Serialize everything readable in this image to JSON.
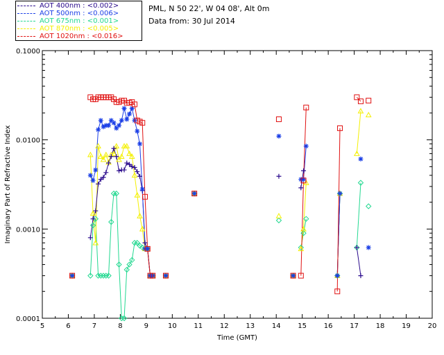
{
  "legend": [
    {
      "label": "AOT  400nm : <0.002>",
      "color": "#2a0a8c"
    },
    {
      "label": "AOT  500nm : <0.006>",
      "color": "#1a3ee6"
    },
    {
      "label": "AOT  675nm : <0.001>",
      "color": "#22d890"
    },
    {
      "label": "AOT  870nm : <0.005>",
      "color": "#f4f000"
    },
    {
      "label": "AOT 1020nm : <0.016>",
      "color": "#e01010"
    }
  ],
  "info": {
    "site": "PML, N 50 22', W 04 08', Alt 0m",
    "date": "Data from: 30 Jul 2014"
  },
  "chart_data": {
    "type": "line",
    "xlabel": "Time (GMT)",
    "ylabel": "Imaginary Part of Refractive Index",
    "xlim": [
      5,
      20
    ],
    "ylim": [
      0.0001,
      0.1
    ],
    "yscale": "log",
    "xticks": [
      "5",
      "6",
      "7",
      "8",
      "9",
      "10",
      "11",
      "12",
      "13",
      "14",
      "15",
      "16",
      "17",
      "18",
      "19",
      "20"
    ],
    "yticks": [
      {
        "label": "0.0001",
        "value": 0.0001
      },
      {
        "label": "0.0010",
        "value": 0.001
      },
      {
        "label": "0.0100",
        "value": 0.01
      },
      {
        "label": "0.1000",
        "value": 0.1
      }
    ],
    "series": [
      {
        "name": "AOT  400nm : <0.002>",
        "color": "#2a0a8c",
        "marker": "plus",
        "segments": [
          [
            [
              6.15,
              0.0003
            ]
          ],
          [
            [
              6.85,
              0.0008
            ],
            [
              6.95,
              0.0013
            ],
            [
              7.05,
              0.0016
            ],
            [
              7.15,
              0.0032
            ],
            [
              7.25,
              0.0036
            ],
            [
              7.35,
              0.0038
            ],
            [
              7.45,
              0.0043
            ],
            [
              7.55,
              0.0055
            ],
            [
              7.65,
              0.0065
            ],
            [
              7.75,
              0.008
            ],
            [
              7.85,
              0.0065
            ],
            [
              7.95,
              0.0045
            ],
            [
              8.05,
              0.0046
            ],
            [
              8.15,
              0.0046
            ],
            [
              8.25,
              0.0055
            ],
            [
              8.35,
              0.0053
            ],
            [
              8.45,
              0.005
            ],
            [
              8.55,
              0.0049
            ],
            [
              8.65,
              0.0044
            ],
            [
              8.75,
              0.0039
            ],
            [
              8.85,
              0.0027
            ],
            [
              8.95,
              0.0007
            ],
            [
              9.05,
              0.0006
            ],
            [
              9.15,
              0.0003
            ],
            [
              9.25,
              0.0003
            ]
          ],
          [
            [
              9.75,
              0.0003
            ]
          ],
          [
            [
              10.85,
              0.0025
            ]
          ],
          [
            [
              14.1,
              0.0039
            ]
          ],
          [
            [
              14.65,
              0.0003
            ]
          ],
          [
            [
              14.95,
              0.0029
            ],
            [
              15.05,
              0.0045
            ]
          ],
          [
            [
              16.35,
              0.0003
            ],
            [
              16.45,
              0.0025
            ]
          ],
          [
            [
              17.1,
              0.00062
            ],
            [
              17.25,
              0.0003
            ]
          ]
        ]
      },
      {
        "name": "AOT  500nm : <0.006>",
        "color": "#1a3ee6",
        "marker": "star",
        "segments": [
          [
            [
              6.15,
              0.0003
            ]
          ],
          [
            [
              6.85,
              0.004
            ],
            [
              6.95,
              0.0035
            ],
            [
              7.05,
              0.0046
            ],
            [
              7.15,
              0.013
            ],
            [
              7.25,
              0.0165
            ],
            [
              7.35,
              0.014
            ],
            [
              7.45,
              0.0145
            ],
            [
              7.55,
              0.0145
            ],
            [
              7.65,
              0.0165
            ],
            [
              7.75,
              0.0155
            ],
            [
              7.85,
              0.0135
            ],
            [
              7.95,
              0.0145
            ],
            [
              8.05,
              0.0165
            ],
            [
              8.15,
              0.0225
            ],
            [
              8.25,
              0.017
            ],
            [
              8.35,
              0.0195
            ],
            [
              8.45,
              0.0225
            ],
            [
              8.55,
              0.0165
            ],
            [
              8.65,
              0.0125
            ],
            [
              8.75,
              0.009
            ],
            [
              8.85,
              0.0028
            ],
            [
              8.95,
              0.0006
            ],
            [
              9.05,
              0.0006
            ],
            [
              9.15,
              0.0003
            ],
            [
              9.25,
              0.0003
            ]
          ],
          [
            [
              9.75,
              0.0003
            ]
          ],
          [
            [
              10.85,
              0.0025
            ]
          ],
          [
            [
              14.1,
              0.011
            ]
          ],
          [
            [
              14.65,
              0.0003
            ]
          ],
          [
            [
              14.95,
              0.0036
            ],
            [
              15.05,
              0.0036
            ],
            [
              15.15,
              0.0085
            ]
          ],
          [
            [
              16.35,
              0.0003
            ],
            [
              16.45,
              0.0025
            ]
          ],
          [
            [
              17.25,
              0.0061
            ]
          ],
          [
            [
              17.55,
              0.00062
            ]
          ]
        ]
      },
      {
        "name": "AOT  675nm : <0.001>",
        "color": "#22d890",
        "marker": "diamond",
        "segments": [
          [
            [
              6.15,
              0.0003
            ]
          ],
          [
            [
              6.85,
              0.0003
            ],
            [
              6.95,
              0.0011
            ],
            [
              7.05,
              0.0013
            ],
            [
              7.15,
              0.0003
            ],
            [
              7.25,
              0.0003
            ],
            [
              7.35,
              0.0003
            ],
            [
              7.45,
              0.0003
            ],
            [
              7.55,
              0.0003
            ],
            [
              7.65,
              0.0012
            ],
            [
              7.75,
              0.0025
            ],
            [
              7.85,
              0.0025
            ],
            [
              7.95,
              0.0004
            ],
            [
              8.05,
              0.0001
            ],
            [
              8.15,
              0.0001
            ],
            [
              8.25,
              0.00035
            ],
            [
              8.35,
              0.0004
            ],
            [
              8.45,
              0.00045
            ],
            [
              8.55,
              0.0007
            ],
            [
              8.65,
              0.0007
            ],
            [
              8.75,
              0.00065
            ],
            [
              8.85,
              0.00062
            ],
            [
              8.95,
              0.0006
            ],
            [
              9.05,
              0.0006
            ],
            [
              9.15,
              0.0003
            ],
            [
              9.25,
              0.0003
            ]
          ],
          [
            [
              9.75,
              0.0003
            ]
          ],
          [
            [
              10.85,
              0.0025
            ]
          ],
          [
            [
              14.1,
              0.00125
            ]
          ],
          [
            [
              14.65,
              0.0003
            ]
          ],
          [
            [
              14.95,
              0.00062
            ],
            [
              15.05,
              0.0009
            ],
            [
              15.15,
              0.0013
            ]
          ],
          [
            [
              16.35,
              0.0003
            ],
            [
              16.45,
              0.0025
            ]
          ],
          [
            [
              17.1,
              0.00062
            ],
            [
              17.25,
              0.0033
            ]
          ],
          [
            [
              17.55,
              0.0018
            ]
          ]
        ]
      },
      {
        "name": "AOT  870nm : <0.005>",
        "color": "#f4f000",
        "marker": "triangle",
        "segments": [
          [
            [
              6.15,
              0.0003
            ]
          ],
          [
            [
              6.85,
              0.0068
            ],
            [
              6.95,
              0.0015
            ],
            [
              7.05,
              0.0007
            ],
            [
              7.15,
              0.0085
            ],
            [
              7.25,
              0.0065
            ],
            [
              7.35,
              0.006
            ],
            [
              7.45,
              0.0068
            ],
            [
              7.55,
              0.0056
            ],
            [
              7.65,
              0.0068
            ],
            [
              7.75,
              0.007
            ],
            [
              7.85,
              0.0085
            ],
            [
              7.95,
              0.006
            ],
            [
              8.05,
              0.0065
            ],
            [
              8.15,
              0.0085
            ],
            [
              8.25,
              0.0085
            ],
            [
              8.35,
              0.007
            ],
            [
              8.45,
              0.0065
            ],
            [
              8.55,
              0.004
            ],
            [
              8.65,
              0.0024
            ],
            [
              8.75,
              0.0014
            ],
            [
              8.85,
              0.001
            ],
            [
              8.95,
              0.0006
            ],
            [
              9.05,
              0.0006
            ],
            [
              9.15,
              0.0003
            ],
            [
              9.25,
              0.0003
            ]
          ],
          [
            [
              9.75,
              0.0003
            ]
          ],
          [
            [
              10.85,
              0.0025
            ]
          ],
          [
            [
              14.1,
              0.0014
            ]
          ],
          [
            [
              14.65,
              0.0003
            ]
          ],
          [
            [
              14.95,
              0.0006
            ],
            [
              15.05,
              0.001
            ],
            [
              15.15,
              0.0033
            ]
          ],
          [
            [
              16.35,
              0.0003
            ],
            [
              16.45,
              0.0025
            ]
          ],
          [
            [
              17.1,
              0.007
            ],
            [
              17.25,
              0.021
            ]
          ],
          [
            [
              17.55,
              0.019
            ]
          ]
        ]
      },
      {
        "name": "AOT 1020nm : <0.016>",
        "color": "#e01010",
        "marker": "square",
        "segments": [
          [
            [
              6.15,
              0.0003
            ]
          ],
          [
            [
              6.85,
              0.03
            ],
            [
              6.95,
              0.0285
            ],
            [
              7.05,
              0.0285
            ],
            [
              7.15,
              0.03
            ],
            [
              7.25,
              0.03
            ],
            [
              7.35,
              0.03
            ],
            [
              7.45,
              0.03
            ],
            [
              7.55,
              0.03
            ],
            [
              7.65,
              0.03
            ],
            [
              7.75,
              0.0285
            ],
            [
              7.85,
              0.0265
            ],
            [
              7.95,
              0.0265
            ],
            [
              8.05,
              0.0275
            ],
            [
              8.15,
              0.0275
            ],
            [
              8.25,
              0.026
            ],
            [
              8.35,
              0.026
            ],
            [
              8.45,
              0.0265
            ],
            [
              8.55,
              0.025
            ],
            [
              8.65,
              0.0165
            ],
            [
              8.75,
              0.016
            ],
            [
              8.85,
              0.0155
            ],
            [
              8.95,
              0.0023
            ],
            [
              9.05,
              0.0006
            ],
            [
              9.15,
              0.0003
            ],
            [
              9.25,
              0.0003
            ]
          ],
          [
            [
              9.75,
              0.0003
            ]
          ],
          [
            [
              10.85,
              0.0025
            ]
          ],
          [
            [
              14.1,
              0.017
            ]
          ],
          [
            [
              14.65,
              0.0003
            ]
          ],
          [
            [
              14.95,
              0.0003
            ],
            [
              15.05,
              0.0035
            ],
            [
              15.15,
              0.023
            ]
          ],
          [
            [
              16.35,
              0.0002
            ],
            [
              16.45,
              0.0135
            ]
          ],
          [
            [
              17.1,
              0.03
            ],
            [
              17.25,
              0.027
            ]
          ],
          [
            [
              17.55,
              0.0275
            ]
          ]
        ]
      }
    ]
  }
}
